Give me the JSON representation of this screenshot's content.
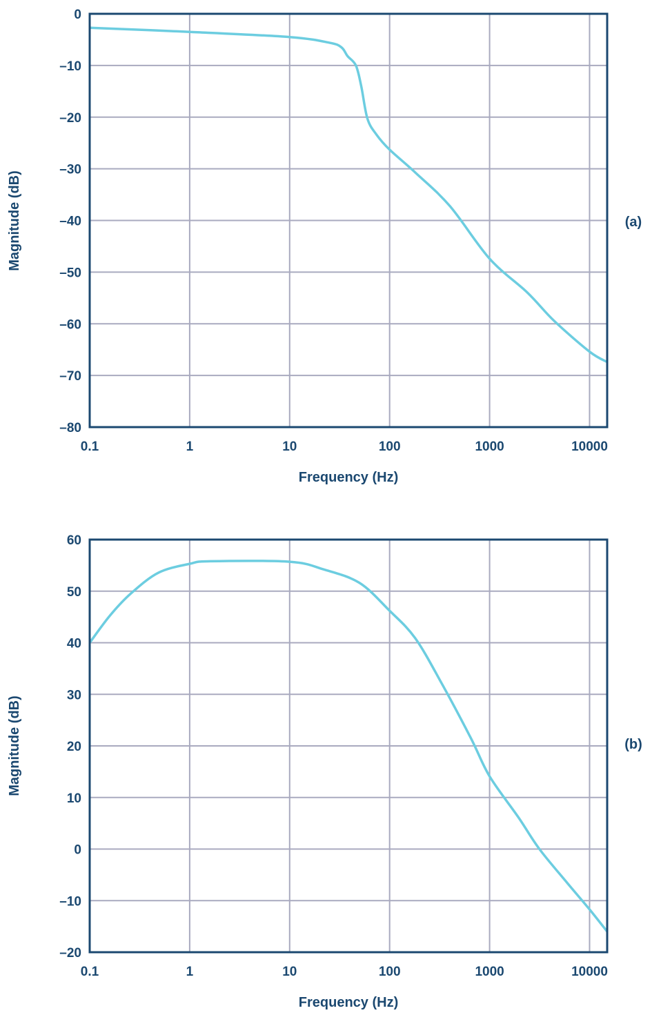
{
  "colors": {
    "line": "#6ccde0",
    "grid": "#a9aabf",
    "axis": "#1b4870"
  },
  "chart_data": [
    {
      "type": "line",
      "panel_label": "(a)",
      "xlabel": "Frequency (Hz)",
      "ylabel": "Magnitude (dB)",
      "xscale": "log",
      "xlim": [
        0.1,
        15000
      ],
      "ylim": [
        -80,
        0
      ],
      "grid": true,
      "xticks": [
        "0.1",
        "1",
        "10",
        "100",
        "1000",
        "10000"
      ],
      "xtick_values": [
        0.1,
        1,
        10,
        100,
        1000,
        10000
      ],
      "yticks": [
        "0",
        "–10",
        "–20",
        "–30",
        "–40",
        "–50",
        "–60",
        "–70",
        "–80"
      ],
      "ytick_values": [
        0,
        -10,
        -20,
        -30,
        -40,
        -50,
        -60,
        -70,
        -80
      ],
      "x": [
        0.1,
        1,
        10,
        25,
        33,
        38,
        46,
        52,
        60,
        74,
        100,
        180,
        400,
        1000,
        2400,
        4400,
        10000,
        15000
      ],
      "y": [
        -2.7,
        -3.5,
        -4.5,
        -5.6,
        -6.5,
        -8.2,
        -10,
        -14,
        -20.3,
        -23.4,
        -26.3,
        -30.7,
        -37.2,
        -47.4,
        -54,
        -59.4,
        -65.4,
        -67.4
      ]
    },
    {
      "type": "line",
      "panel_label": "(b)",
      "xlabel": "Frequency (Hz)",
      "ylabel": "Magnitude (dB)",
      "xscale": "log",
      "xlim": [
        0.1,
        15000
      ],
      "ylim": [
        -20,
        60
      ],
      "grid": true,
      "xticks": [
        "0.1",
        "1",
        "10",
        "100",
        "1000",
        "10000"
      ],
      "xtick_values": [
        0.1,
        1,
        10,
        100,
        1000,
        10000
      ],
      "yticks": [
        "60",
        "50",
        "40",
        "30",
        "20",
        "10",
        "0",
        "–10",
        "–20"
      ],
      "ytick_values": [
        60,
        50,
        40,
        30,
        20,
        10,
        0,
        -10,
        -20
      ],
      "x": [
        0.1,
        0.16,
        0.26,
        0.49,
        1,
        1.6,
        10,
        22,
        50,
        100,
        180,
        330,
        650,
        1000,
        1950,
        3150,
        6000,
        10000,
        15000
      ],
      "y": [
        40,
        45.3,
        49.6,
        53.6,
        55.3,
        55.8,
        55.7,
        54.2,
        51.6,
        46.2,
        40.9,
        32.2,
        21.5,
        14.1,
        6.1,
        0,
        -6.6,
        -11.7,
        -16
      ]
    }
  ]
}
